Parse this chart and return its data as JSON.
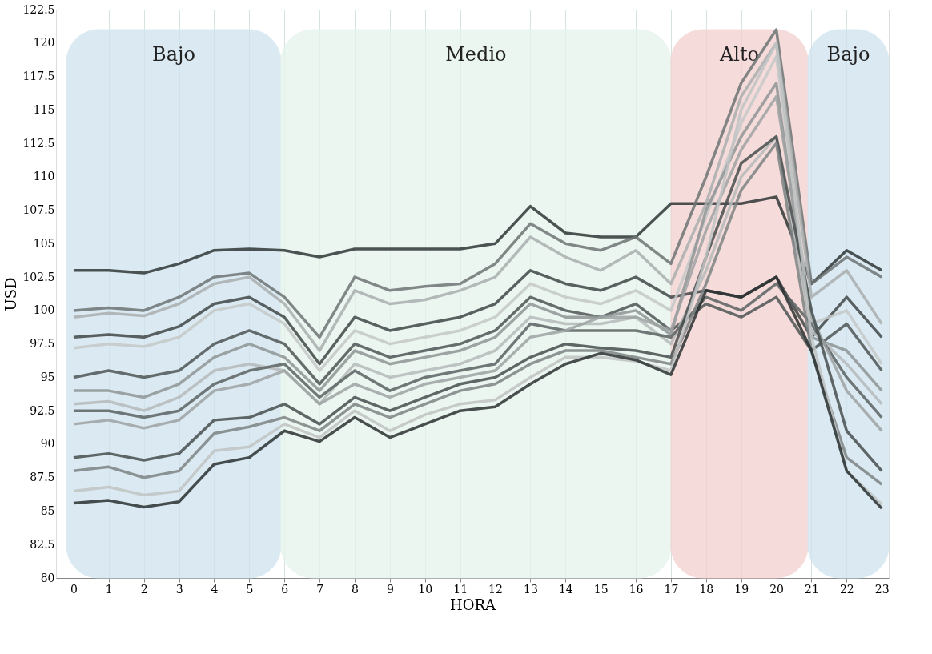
{
  "chart_data": {
    "type": "line",
    "xlabel": "HORA",
    "ylabel": "USD",
    "x": [
      0,
      1,
      2,
      3,
      4,
      5,
      6,
      7,
      8,
      9,
      10,
      11,
      12,
      13,
      14,
      15,
      16,
      17,
      18,
      19,
      20,
      21,
      22,
      23
    ],
    "xlim": [
      -0.5,
      23.2
    ],
    "xticks": [
      0,
      1,
      2,
      3,
      4,
      5,
      6,
      7,
      8,
      9,
      10,
      11,
      12,
      13,
      14,
      15,
      16,
      17,
      18,
      19,
      20,
      21,
      22,
      23
    ],
    "ylim": [
      80,
      122.5
    ],
    "yticks": [
      80,
      82.5,
      85,
      87.5,
      90,
      92.5,
      95,
      97.5,
      100,
      102.5,
      105,
      107.5,
      110,
      112.5,
      115,
      117.5,
      120,
      122.5
    ],
    "grid": "x",
    "legend": false,
    "marker": "none",
    "line_style": "solid",
    "bands": [
      {
        "axis": "x",
        "from": -0.2,
        "to": 5.9,
        "label": "Bajo",
        "color": "#cfe4ee"
      },
      {
        "axis": "x",
        "from": 5.9,
        "to": 17,
        "label": "Medio",
        "color": "#e4f3ea"
      },
      {
        "axis": "x",
        "from": 17,
        "to": 20.9,
        "label": "Alto",
        "color": "#f3d0d0"
      },
      {
        "axis": "x",
        "from": 20.9,
        "to": 23.2,
        "label": "Bajo",
        "color": "#cfe4ee"
      }
    ],
    "series": [
      {
        "color": "#2f3636",
        "values": [
          103,
          103,
          102.8,
          103.5,
          104.5,
          104.6,
          104.5,
          104,
          104.6,
          104.6,
          104.6,
          104.6,
          105,
          107.8,
          105.8,
          105.5,
          105.5,
          108,
          108,
          108,
          108.5,
          102,
          104.5,
          103
        ]
      },
      {
        "color": "#6d7373",
        "values": [
          100,
          100.2,
          100,
          101,
          102.5,
          102.8,
          101,
          98,
          102.5,
          101.5,
          101.8,
          102,
          103.5,
          106.5,
          105,
          104.5,
          105.5,
          103.5,
          110,
          117,
          121,
          102,
          104,
          102.5
        ]
      },
      {
        "color": "#a9aeae",
        "values": [
          99.5,
          99.8,
          99.6,
          100.5,
          102,
          102.5,
          100.5,
          97,
          101.5,
          100.5,
          100.8,
          101.5,
          102.5,
          105.5,
          104,
          103,
          104.5,
          102,
          108,
          116,
          120,
          101,
          103,
          99
        ]
      },
      {
        "color": "#3f4646",
        "values": [
          98,
          98.2,
          98,
          98.8,
          100.5,
          101,
          99.5,
          96,
          99.5,
          98.5,
          99,
          99.5,
          100.5,
          103,
          102,
          101.5,
          102.5,
          101,
          101.5,
          101,
          102.5,
          98,
          101,
          98
        ]
      },
      {
        "color": "#c4c8c8",
        "values": [
          97.2,
          97.5,
          97.3,
          98,
          100,
          100.5,
          99,
          95.5,
          98.5,
          97.5,
          98,
          98.5,
          99.5,
          102,
          101,
          100.5,
          101.5,
          100,
          107,
          114,
          119,
          99,
          100,
          96
        ]
      },
      {
        "color": "#4d5555",
        "values": [
          95,
          95.5,
          95,
          95.5,
          97.5,
          98.5,
          97.5,
          94.5,
          97.5,
          96.5,
          97,
          97.5,
          98.5,
          101,
          100,
          99.5,
          100.5,
          98.5,
          100.5,
          99.5,
          101,
          97,
          99,
          95.5
        ]
      },
      {
        "color": "#8e9494",
        "values": [
          94,
          94,
          93.5,
          94.5,
          96.5,
          97.5,
          96.5,
          94,
          97,
          96,
          96.5,
          97,
          98,
          100.5,
          99.5,
          99.5,
          100,
          98.2,
          107.5,
          113,
          117,
          98,
          97,
          94
        ]
      },
      {
        "color": "#b5baba",
        "values": [
          93,
          93.2,
          92.5,
          93.5,
          95.5,
          96,
          95.5,
          93,
          96,
          95,
          95.5,
          96,
          97,
          99.5,
          99,
          99,
          99.5,
          97.5,
          103,
          110,
          113,
          98.5,
          96,
          93
        ]
      },
      {
        "color": "#5a6262",
        "values": [
          92.5,
          92.5,
          92,
          92.5,
          94.5,
          95.5,
          96,
          93.5,
          95.5,
          94,
          95,
          95.5,
          96,
          99,
          98.5,
          98.5,
          98.5,
          98,
          101,
          100,
          102,
          99,
          95,
          92
        ]
      },
      {
        "color": "#9da2a2",
        "values": [
          91.5,
          91.8,
          91.2,
          91.8,
          94,
          94.5,
          95.5,
          93,
          94.5,
          93.5,
          94.5,
          95,
          95.5,
          98,
          98.5,
          99.5,
          99.5,
          98.5,
          106,
          112,
          116,
          99.5,
          94,
          91
        ]
      },
      {
        "color": "#474e4e",
        "values": [
          89,
          89.3,
          88.8,
          89.3,
          91.8,
          92,
          93,
          91.5,
          93.5,
          92.5,
          93.5,
          94.5,
          95,
          96.5,
          97.5,
          97.2,
          97,
          96.5,
          104,
          111,
          113,
          100,
          91,
          88
        ]
      },
      {
        "color": "#7c8282",
        "values": [
          88,
          88.3,
          87.5,
          88,
          90.8,
          91.3,
          92,
          91,
          93,
          92,
          93,
          94,
          94.5,
          96,
          97,
          97,
          96.5,
          96,
          102,
          109,
          112.5,
          97,
          89,
          87
        ]
      },
      {
        "color": "#bfc3c3",
        "values": [
          86.5,
          86.8,
          86.2,
          86.5,
          89.5,
          89.8,
          91.5,
          90.5,
          92.5,
          91,
          92.2,
          93,
          93.3,
          95,
          96.5,
          96.5,
          96.2,
          95.5,
          104,
          115,
          120,
          98,
          88,
          85.5
        ]
      },
      {
        "color": "#2a3030",
        "values": [
          85.6,
          85.8,
          85.3,
          85.7,
          88.5,
          89,
          91,
          90.2,
          92,
          90.5,
          91.5,
          92.5,
          92.8,
          94.5,
          96,
          96.8,
          96.3,
          95.2,
          101.5,
          101,
          102.5,
          97,
          88,
          85.2
        ]
      }
    ]
  }
}
